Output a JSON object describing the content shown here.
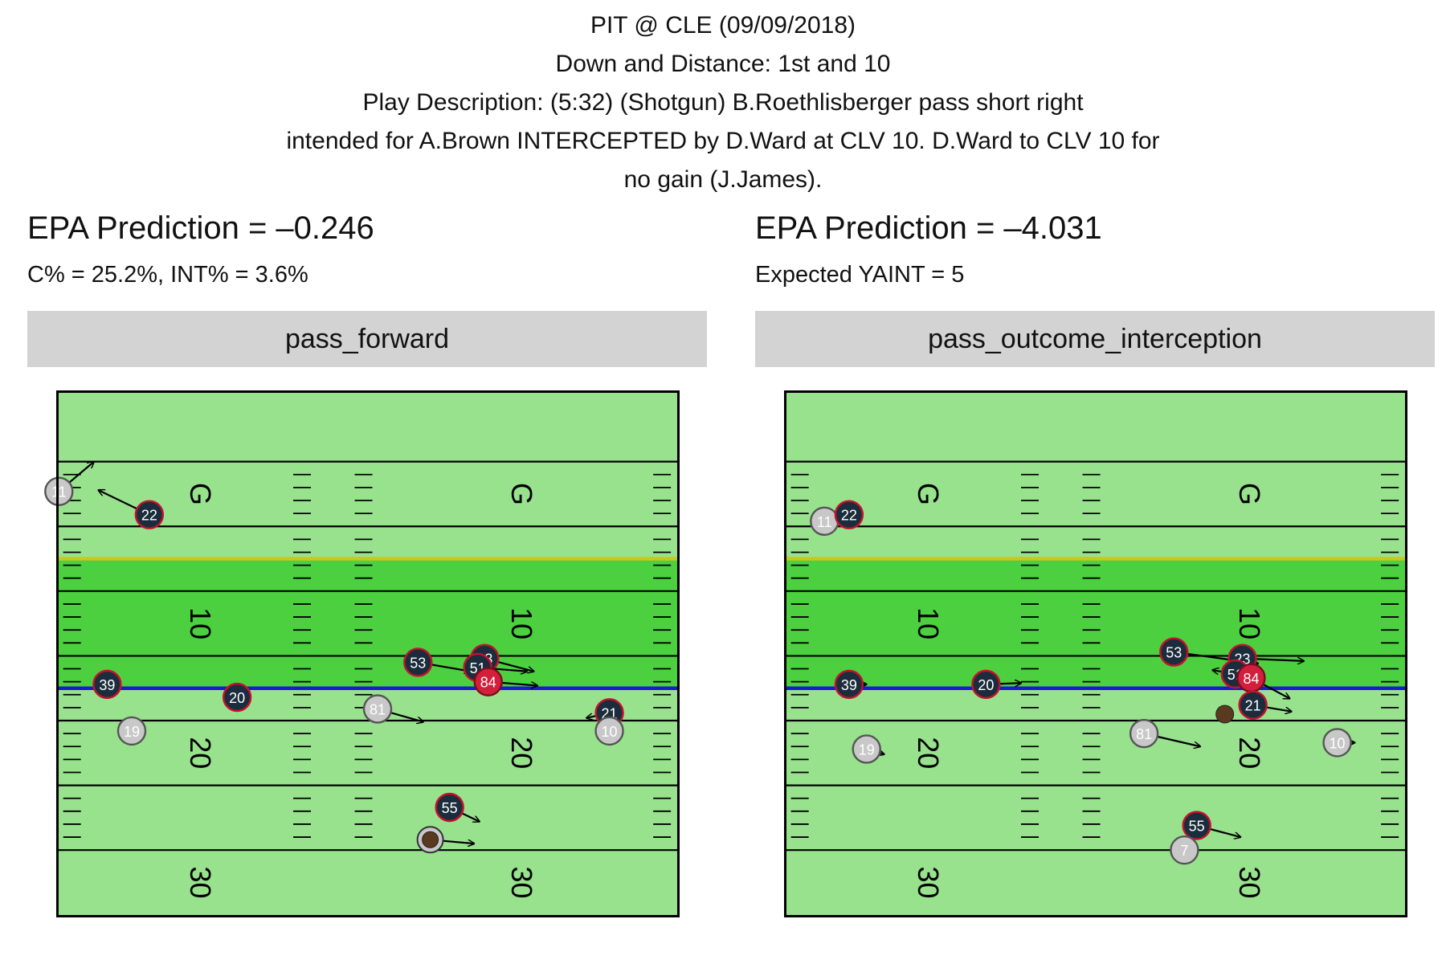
{
  "title_lines": [
    "PIT @ CLE (09/09/2018)",
    "Down and Distance: 1st and 10",
    "Play Description: (5:32) (Shotgun) B.Roethlisberger pass short right",
    "intended for A.Brown INTERCEPTED by D.Ward at CLV 10. D.Ward to CLV 10 for",
    "no gain (J.James)."
  ],
  "field_labels": {
    "goal": "G",
    "yard_10": "10",
    "yard_20": "20",
    "yard_30": "30"
  },
  "colors": {
    "field_outer": "#98e28e",
    "field_between_lines": "#4cd040",
    "line_of_scrimmage": "#c8c81e",
    "first_down_line": "#1a1ad2",
    "offense_fill": "#c8c8c8",
    "defense_fill": "#1b2d3c",
    "defense_border": "#c8102e",
    "highlight_fill": "#d21f3c",
    "ball": "#5a3a1f"
  },
  "panels": [
    {
      "epa": "EPA Prediction = –0.246",
      "sub": "C% = 25.2%, INT% = 3.6%",
      "strip": "pass_forward",
      "players": [
        {
          "num": "11",
          "team": "offense",
          "y": 0.15,
          "x": 2.3,
          "dy": 2.0,
          "dx": -2.3
        },
        {
          "num": "22",
          "team": "defense",
          "y": 5.3,
          "x": 4.1,
          "dy": -2.9,
          "dx": -1.9
        },
        {
          "num": "53",
          "team": "defense",
          "y": 20.6,
          "x": 15.5,
          "dy": 3.0,
          "dx": 0.7
        },
        {
          "num": "23",
          "team": "defense",
          "y": 24.4,
          "x": 15.2,
          "dy": 2.8,
          "dx": 1.0
        },
        {
          "num": "51",
          "team": "defense",
          "y": 24.0,
          "x": 15.9,
          "dy": 2.8,
          "dx": 0.3
        },
        {
          "num": "84",
          "team": "highlight",
          "y": 24.6,
          "x": 17.0,
          "dy": 2.8,
          "dx": 0.3
        },
        {
          "num": "39",
          "team": "defense",
          "y": 2.9,
          "x": 17.2,
          "dy": 0.5,
          "dx": 0.6
        },
        {
          "num": "20",
          "team": "defense",
          "y": 10.3,
          "x": 18.2,
          "dy": 0.1,
          "dx": 0.5
        },
        {
          "num": "81",
          "team": "offense",
          "y": 18.3,
          "x": 19.1,
          "dy": 2.6,
          "dx": 1.0
        },
        {
          "num": "21",
          "team": "defense",
          "y": 31.5,
          "x": 19.4,
          "dy": -1.3,
          "dx": 0.4
        },
        {
          "num": "10",
          "team": "offense",
          "y": 31.5,
          "x": 20.8,
          "dy": 0.0,
          "dx": 0.0
        },
        {
          "num": "19",
          "team": "offense",
          "y": 4.3,
          "x": 20.8,
          "dy": -0.5,
          "dx": 0.3
        },
        {
          "num": "55",
          "team": "defense",
          "y": 22.4,
          "x": 26.7,
          "dy": 1.7,
          "dx": 1.1
        },
        {
          "num": "",
          "team": "ball",
          "y": 21.3,
          "x": 29.2,
          "dy": 2.5,
          "dx": 0.3
        }
      ]
    },
    {
      "epa": "EPA Prediction = –4.031",
      "sub": "Expected YAINT = 5",
      "strip": "pass_outcome_interception",
      "players": [
        {
          "num": "11",
          "team": "offense",
          "y": 2.3,
          "x": 4.6,
          "dy": 0.7,
          "dx": -0.3
        },
        {
          "num": "22",
          "team": "defense",
          "y": 3.7,
          "x": 4.1,
          "dy": -0.4,
          "dx": 0.1
        },
        {
          "num": "53",
          "team": "defense",
          "y": 22.2,
          "x": 14.7,
          "dy": 4.8,
          "dx": 0.9
        },
        {
          "num": "23",
          "team": "defense",
          "y": 26.1,
          "x": 15.2,
          "dy": 3.5,
          "dx": 0.2
        },
        {
          "num": "51",
          "team": "defense",
          "y": 25.7,
          "x": 16.4,
          "dy": -1.3,
          "dx": -0.3
        },
        {
          "num": "84",
          "team": "highlight",
          "y": 26.6,
          "x": 16.7,
          "dy": 2.2,
          "dx": 1.6
        },
        {
          "num": "39",
          "team": "defense",
          "y": 3.7,
          "x": 17.2,
          "dy": 1.0,
          "dx": 0.0
        },
        {
          "num": "20",
          "team": "defense",
          "y": 11.5,
          "x": 17.2,
          "dy": 2.0,
          "dx": -0.1
        },
        {
          "num": "21",
          "team": "defense",
          "y": 26.7,
          "x": 18.8,
          "dy": 2.2,
          "dx": 0.5
        },
        {
          "num": "",
          "team": "ball",
          "y": 25.1,
          "x": 19.5,
          "dy": 0.0,
          "dx": 0.0
        },
        {
          "num": "81",
          "team": "offense",
          "y": 20.5,
          "x": 21.0,
          "dy": 3.2,
          "dx": 1.0
        },
        {
          "num": "10",
          "team": "offense",
          "y": 31.5,
          "x": 21.7,
          "dy": 1.0,
          "dx": 0.0
        },
        {
          "num": "19",
          "team": "offense",
          "y": 4.7,
          "x": 22.2,
          "dy": 1.0,
          "dx": 0.4
        },
        {
          "num": "55",
          "team": "defense",
          "y": 23.5,
          "x": 28.1,
          "dy": 2.5,
          "dx": 0.9
        },
        {
          "num": "7",
          "team": "offense",
          "y": 22.8,
          "x": 30.0,
          "dy": 0.0,
          "dx": 0.0
        }
      ]
    }
  ]
}
